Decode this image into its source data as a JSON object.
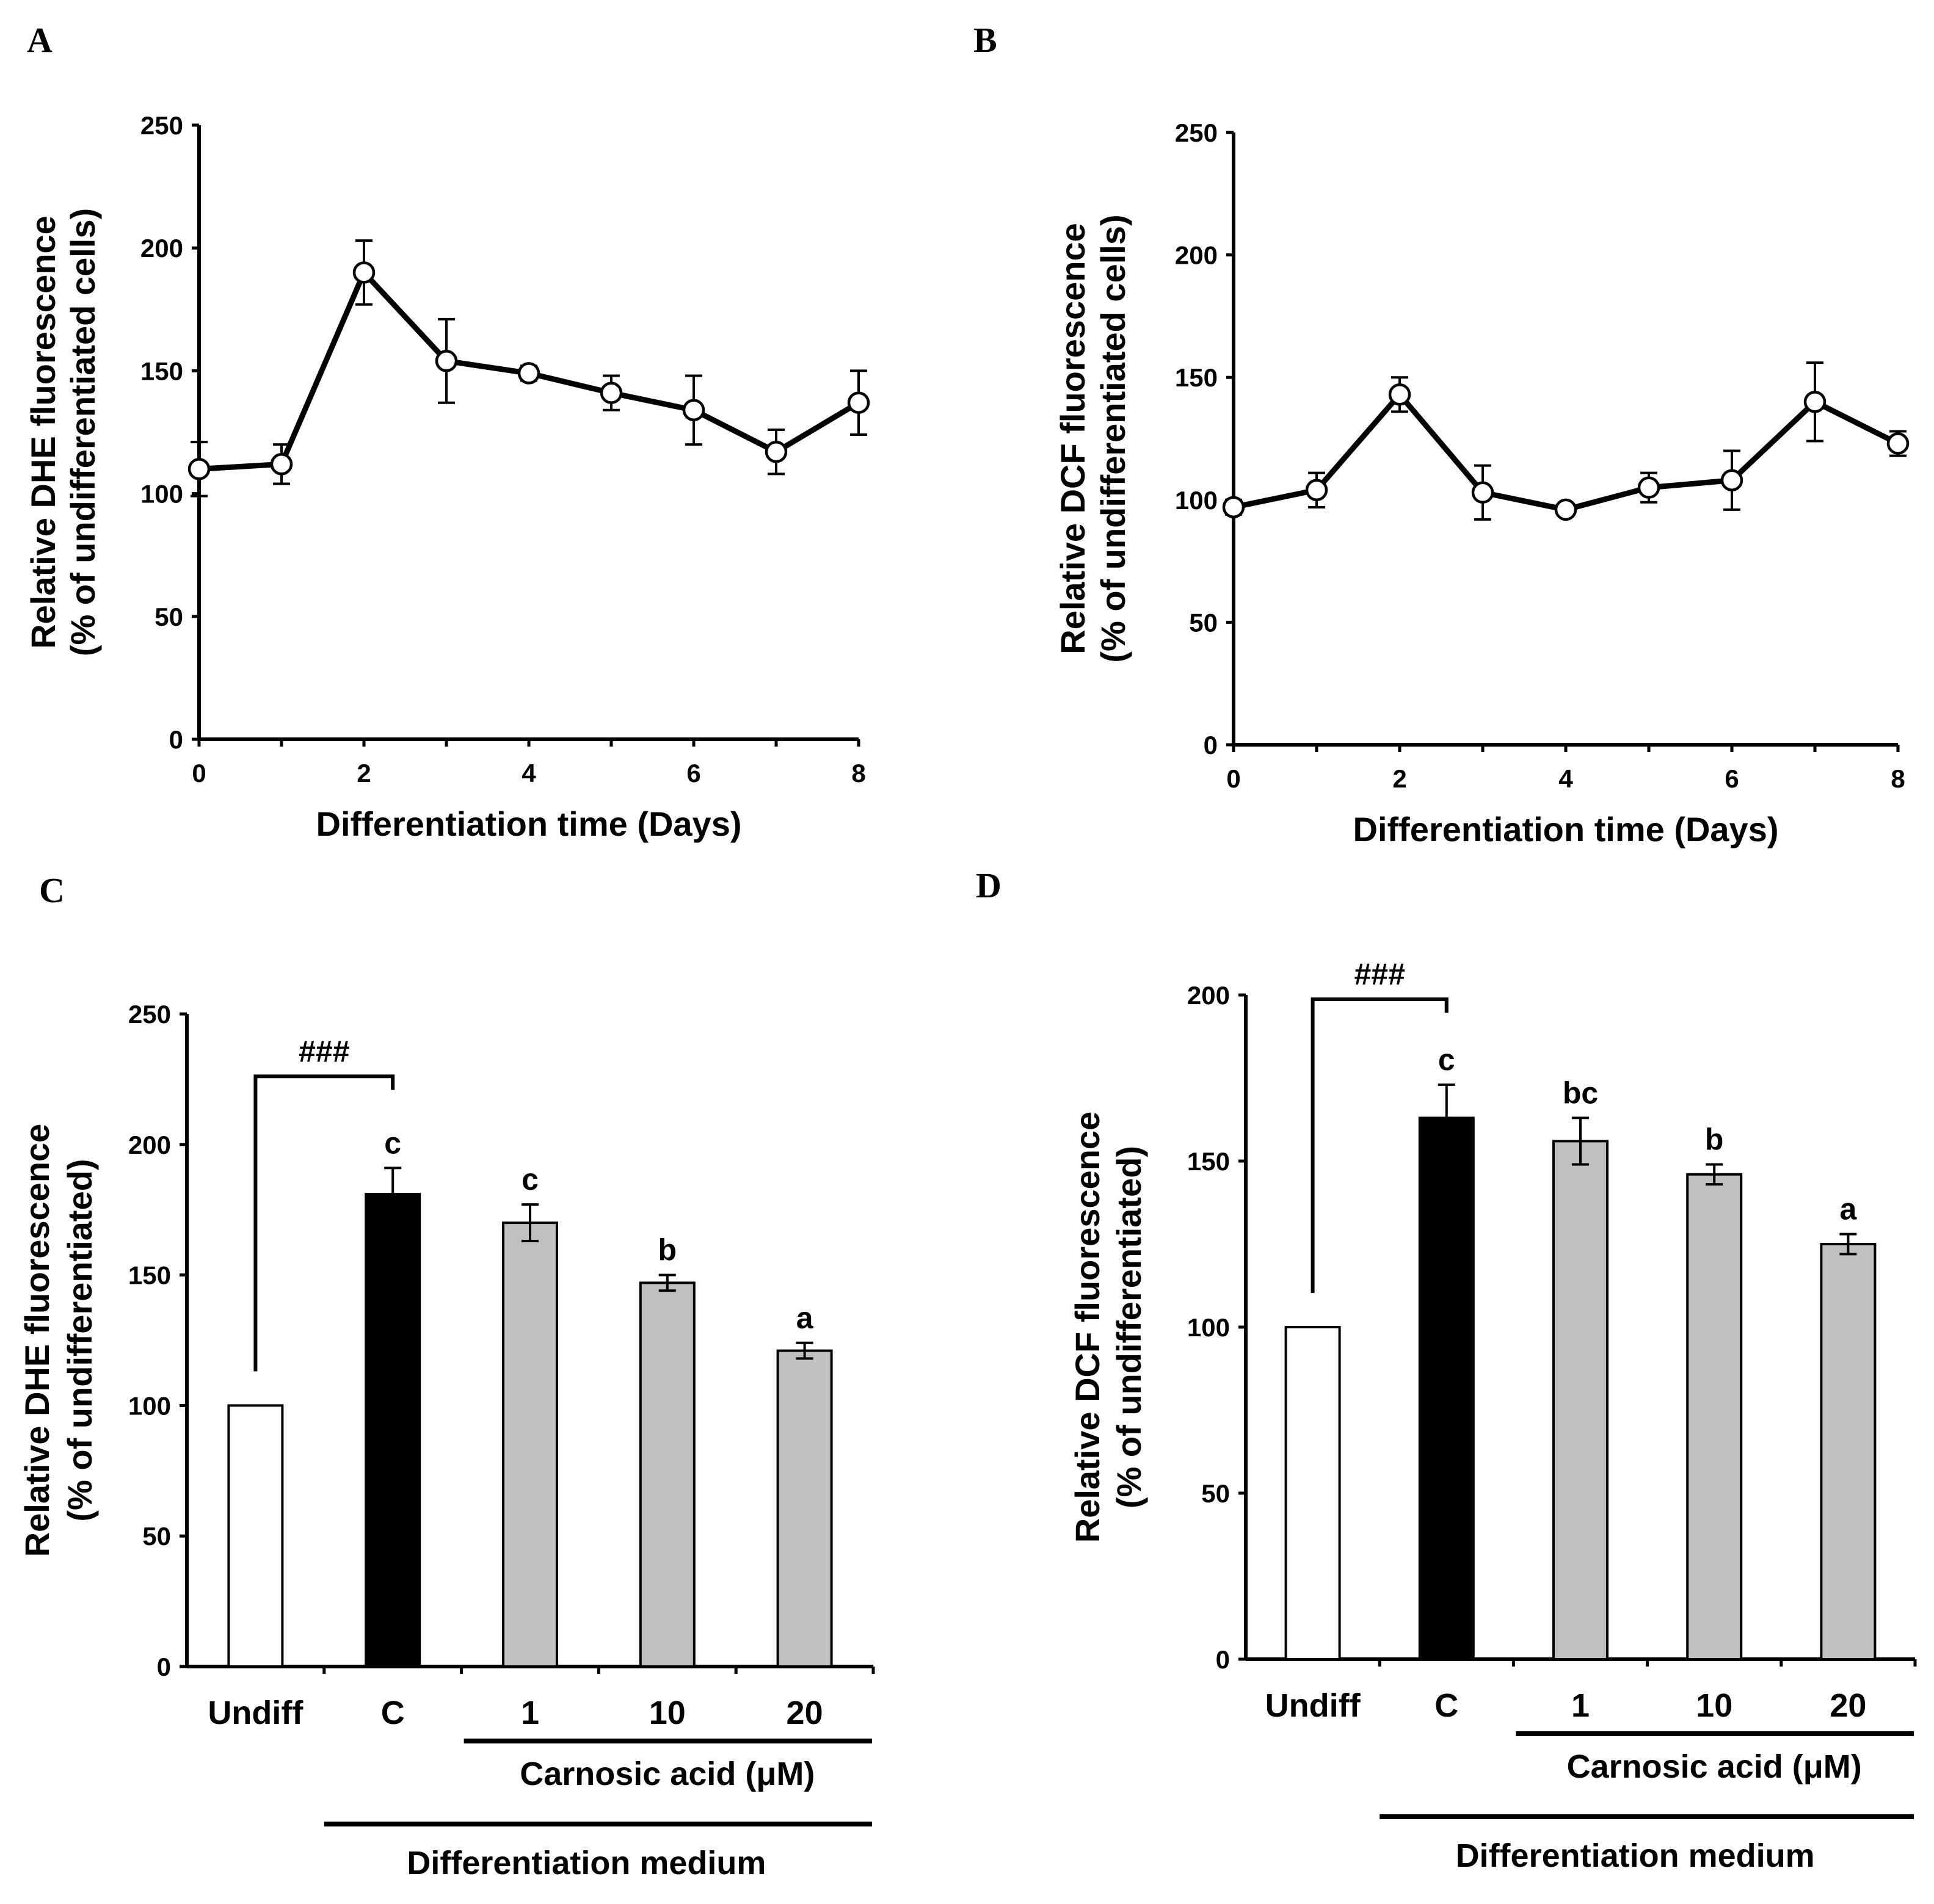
{
  "chart_data": [
    {
      "panel": "A",
      "type": "line",
      "xlabel": "Differentiation time (Days)",
      "ylabel_line1": "Relative DHE fluorescence",
      "ylabel_line2": "(% of undifferentiated cells)",
      "ylim": [
        0,
        250
      ],
      "yticks": [
        0,
        50,
        100,
        150,
        200,
        250
      ],
      "xlim": [
        0,
        8
      ],
      "xticks": [
        0,
        2,
        4,
        6,
        8
      ],
      "x": [
        0,
        1,
        2,
        3,
        4,
        5,
        6,
        7,
        8
      ],
      "y": [
        110,
        112,
        190,
        154,
        149,
        141,
        134,
        117,
        137
      ],
      "err": [
        11,
        8,
        13,
        17,
        3,
        7,
        14,
        9,
        13
      ]
    },
    {
      "panel": "B",
      "type": "line",
      "xlabel": "Differentiation time (Days)",
      "ylabel_line1": "Relative DCF fluorescence",
      "ylabel_line2": "(% of undifferentiated cells)",
      "ylim": [
        0,
        250
      ],
      "yticks": [
        0,
        50,
        100,
        150,
        200,
        250
      ],
      "xlim": [
        0,
        8
      ],
      "xticks": [
        0,
        2,
        4,
        6,
        8
      ],
      "x": [
        0,
        1,
        2,
        3,
        4,
        5,
        6,
        7,
        8
      ],
      "y": [
        97,
        104,
        143,
        103,
        96,
        105,
        108,
        140,
        123
      ],
      "err": [
        3,
        7,
        7,
        11,
        2,
        6,
        12,
        16,
        5
      ]
    },
    {
      "panel": "C",
      "type": "bar",
      "ylabel_line1": "Relative DHE fluorescence",
      "ylabel_line2": "(% of undifferentiated)",
      "ylim": [
        0,
        250
      ],
      "yticks": [
        0,
        50,
        100,
        150,
        200,
        250
      ],
      "categories": [
        "Undiff",
        "C",
        "1",
        "10",
        "20"
      ],
      "values": [
        100,
        181,
        170,
        147,
        121
      ],
      "errors": [
        0,
        10,
        7,
        3,
        3
      ],
      "fills": [
        "#ffffff",
        "#000000",
        "#c0c0c0",
        "#c0c0c0",
        "#c0c0c0"
      ],
      "letters": [
        "",
        "c",
        "c",
        "b",
        "a"
      ],
      "bracket_label": "###",
      "group1_label": "Carnosic  acid  (μM)",
      "group2_label": "Differentiation  medium"
    },
    {
      "panel": "D",
      "type": "bar",
      "ylabel_line1": "Relative DCF fluorescence",
      "ylabel_line2": "(% of undifferentiated)",
      "ylim": [
        0,
        200
      ],
      "yticks": [
        0,
        50,
        100,
        150,
        200
      ],
      "categories": [
        "Undiff",
        "C",
        "1",
        "10",
        "20"
      ],
      "values": [
        100,
        163,
        156,
        146,
        125
      ],
      "errors": [
        0,
        10,
        7,
        3,
        3
      ],
      "fills": [
        "#ffffff",
        "#000000",
        "#c0c0c0",
        "#c0c0c0",
        "#c0c0c0"
      ],
      "letters": [
        "",
        "c",
        "bc",
        "b",
        "a"
      ],
      "bracket_label": "###",
      "group1_label": "Carnosic  acid  (μM)",
      "group2_label": "Differentiation  medium"
    }
  ]
}
